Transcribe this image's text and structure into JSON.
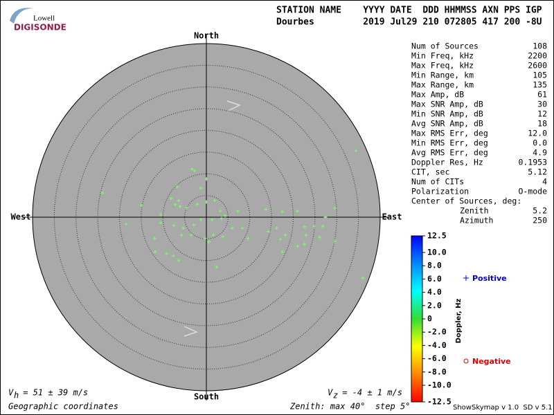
{
  "header": {
    "logo_top": "Lowell",
    "logo_bottom": "DIGISONDE",
    "line1": "STATION NAME    YYYY DATE  DDD HHMMSS AXN PPS IGP",
    "line2": "Dourbes         2019 Jul29 210 072805 417 200 -8U"
  },
  "stats": {
    "rows": [
      [
        "Num of Sources",
        "108"
      ],
      [
        "Min Freq, kHz",
        "2200"
      ],
      [
        "Max Freq, kHz",
        "2600"
      ],
      [
        "Min Range, km",
        "105"
      ],
      [
        "Max Range, km",
        "135"
      ],
      [
        "Max Amp, dB",
        "61"
      ],
      [
        "Max SNR Amp, dB",
        "30"
      ],
      [
        "Min SNR Amp, dB",
        "12"
      ],
      [
        "Avg SNR Amp, dB",
        "18"
      ],
      [
        "Max RMS Err, deg",
        "12.0"
      ],
      [
        "Min RMS Err, deg",
        "0.0"
      ],
      [
        "Avg RMS Err, deg",
        "4.9"
      ],
      [
        "Doppler Res, Hz",
        "0.1953"
      ],
      [
        "CIT, sec",
        "5.12"
      ],
      [
        "Num of CITs",
        "4"
      ],
      [
        "Polarization",
        "O-mode"
      ]
    ],
    "center_title": "Center of Sources, deg:",
    "center_rows": [
      [
        "Zenith",
        "5.2"
      ],
      [
        "Azimuth",
        "250"
      ]
    ]
  },
  "chart_data": {
    "type": "scatter",
    "directions": {
      "north": "North",
      "south": "South",
      "east": "East",
      "west": "West"
    },
    "xlim": [
      -40,
      40
    ],
    "ylim": [
      -40,
      40
    ],
    "rticks": [
      5,
      10,
      15,
      20,
      25,
      30,
      35,
      40
    ],
    "series": [
      {
        "name": "Positive",
        "color": "#7cff6a",
        "x": [
          34.4,
          36.0,
          -23.9,
          -3.3,
          -2.7,
          0,
          -6.7,
          -1.3,
          -8.1,
          -15.0,
          -7.2,
          -6.1,
          -4.5,
          -2.1,
          0,
          1.9,
          3.2,
          4.3,
          7.3,
          13.7,
          17.5,
          21.0,
          27.4,
          29.6,
          26.8,
          24.8,
          22.6,
          16.2,
          14.3,
          17.0,
          18.2,
          22.9,
          26.1,
          29.6,
          22.6,
          21.0,
          17.5,
          9.6,
          8.3,
          5.9,
          3.5,
          1.3,
          -1.3,
          -2.9,
          -5.3,
          -7.5,
          -10.5,
          -18.5,
          -3.5,
          -5.7,
          -0.3,
          1.6,
          3.8,
          0.6,
          -11.9,
          -11.8,
          -9.2,
          -7.6,
          -6.4,
          2.4,
          -10.5,
          -6.4
        ],
        "y": [
          15.3,
          -14.0,
          5.6,
          11.1,
          10.7,
          8.8,
          7.0,
          6.7,
          4.3,
          2.7,
          2.9,
          2.5,
          2.2,
          3.0,
          3.5,
          3.8,
          1.4,
          0.3,
          1.4,
          1.8,
          1.3,
          1.4,
          0,
          2.1,
          -2.1,
          -2.1,
          -2.2,
          -2.5,
          -3.3,
          -5.1,
          -4.1,
          -4.1,
          -4.6,
          -5.6,
          -6.2,
          -6.7,
          -8.0,
          -4.9,
          -2.5,
          -2.5,
          -0.3,
          -0.6,
          -0.6,
          -1.8,
          -2.5,
          -1.9,
          -1.3,
          -1.6,
          -4.1,
          -4.1,
          -4.9,
          -4.1,
          -4.5,
          -5.7,
          -4.9,
          -8.0,
          -8.4,
          -8.9,
          -10.0,
          -11.5,
          0.6,
          3.8
        ]
      }
    ],
    "colorbar": {
      "title": "Doppler, Hz",
      "lim": [
        -12.5,
        12.5
      ],
      "colors": [
        "#ff0000",
        "#ff8800",
        "#ffff00",
        "#33dd33",
        "#00ffff",
        "#0088ff",
        "#0000ff"
      ],
      "ticks": [
        12.5,
        {
          "value": 10,
          "label": "10.0"
        },
        {
          "value": 8,
          "label": "8.0"
        },
        {
          "value": 6,
          "label": "6.0"
        },
        {
          "value": 4,
          "label": "4.0"
        },
        {
          "value": 2,
          "label": "2.0"
        },
        0,
        {
          "value": -2,
          "label": "-2.0"
        },
        {
          "value": -4,
          "label": "-4.0"
        },
        {
          "value": -6,
          "label": "-6.0"
        },
        {
          "value": -8,
          "label": "-8.0"
        },
        {
          "value": -10,
          "label": "-10.0"
        },
        -12.5
      ]
    },
    "legend": {
      "positive": "Positive",
      "positive_color": "#0000cc",
      "negative": "Negative",
      "negative_color": "#dd0000"
    },
    "footer": {
      "vh_v": "V",
      "vh_sub": "h",
      "vh_rest": " = 51 ± 39 m/s",
      "vz_v": "V",
      "vz_sub": "z",
      "vz_rest": " = -4 ± 1 m/s",
      "coords": "Geographic coordinates",
      "zenith": "Zenith: max 40°  step 5°",
      "version": "ShowSkymap v 1.0  SD v 5.1"
    }
  }
}
